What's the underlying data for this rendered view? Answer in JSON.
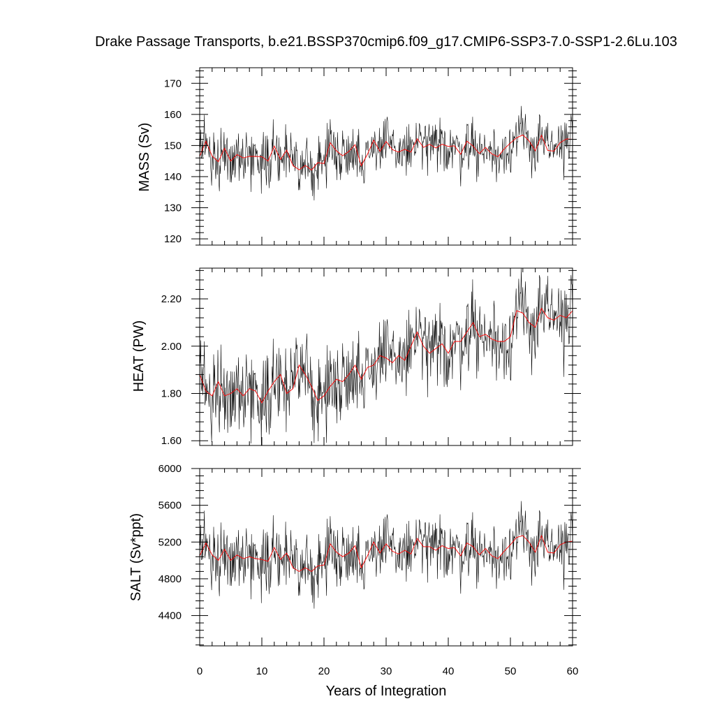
{
  "chart_data": {
    "type": "line",
    "title": "Drake Passage Transports, b.e21.BSSP370cmip6.f09_g17.CMIP6-SSP3-7.0-SSP1-2.6Lu.103",
    "xlabel": "Years of Integration",
    "xlim": [
      0,
      60
    ],
    "xticks": [
      "0",
      "10",
      "20",
      "30",
      "40",
      "50",
      "60"
    ],
    "line_colors": {
      "monthly": "#000000",
      "annual": "#ff0000"
    },
    "panels": [
      {
        "ylabel": "MASS (Sv)",
        "ylim": [
          118,
          175
        ],
        "yticks": [
          "120",
          "130",
          "140",
          "150",
          "160",
          "170"
        ],
        "series": [
          {
            "name": "",
            "values": [
              146.5,
              151.4,
              146.6,
              144.8,
              149.1,
              145.0,
              147.1,
              146.0,
              146.5,
              146.5,
              146.4,
              145.0,
              149.8,
              145.5,
              148.5,
              143.6,
              142.2,
              143.6,
              142.1,
              144.5,
              144.2,
              150.9,
              148.3,
              146.7,
              148.1,
              150.3,
              143.5,
              147.2,
              151.7,
              148.1,
              151.3,
              148.7,
              147.9,
              148.8,
              147.9,
              152.2,
              149.4,
              150.4,
              149.2,
              150.4,
              149.7,
              149.9,
              147.2,
              151.4,
              149.8,
              147.4,
              149.4,
              147.3,
              146.4,
              148.9,
              150.8,
              152.5,
              153.4,
              151.5,
              148.3,
              153.3,
              148.4,
              148.2,
              150.9,
              152.1,
              152.0
            ]
          }
        ]
      },
      {
        "ylabel": "HEAT (PW)",
        "ylim": [
          1.58,
          2.33
        ],
        "yticks": [
          "1.60",
          "1.80",
          "2.00",
          "2.20"
        ],
        "series": [
          {
            "name": "",
            "values": [
              1.88,
              1.81,
              1.79,
              1.85,
              1.79,
              1.8,
              1.82,
              1.79,
              1.82,
              1.81,
              1.76,
              1.81,
              1.85,
              1.88,
              1.8,
              1.82,
              1.92,
              1.88,
              1.83,
              1.77,
              1.79,
              1.83,
              1.86,
              1.85,
              1.88,
              1.92,
              1.86,
              1.91,
              1.92,
              1.96,
              1.95,
              1.93,
              1.96,
              1.94,
              2.0,
              2.06,
              2.0,
              1.97,
              1.99,
              2.01,
              1.97,
              2.02,
              2.02,
              2.06,
              2.1,
              2.04,
              2.05,
              2.03,
              2.02,
              2.02,
              2.04,
              2.15,
              2.14,
              2.1,
              2.08,
              2.16,
              2.12,
              2.11,
              2.13,
              2.12,
              2.15
            ]
          }
        ]
      },
      {
        "ylabel": "SALT (Sv*ppt)",
        "ylim": [
          4070,
          6000
        ],
        "yticks": [
          "4400",
          "4800",
          "5200",
          "5600",
          "6000"
        ],
        "series": [
          {
            "name": "",
            "values": [
              5050,
              5190,
              5060,
              5000,
              5120,
              5000,
              5060,
              5020,
              5040,
              5020,
              5010,
              4990,
              5140,
              5010,
              5080,
              4920,
              4880,
              4920,
              4880,
              4940,
              4950,
              5180,
              5090,
              5040,
              5080,
              5160,
              4920,
              5050,
              5200,
              5080,
              5180,
              5100,
              5070,
              5110,
              5070,
              5240,
              5150,
              5150,
              5110,
              5160,
              5130,
              5140,
              5050,
              5190,
              5150,
              5060,
              5130,
              5050,
              5020,
              5100,
              5170,
              5250,
              5270,
              5200,
              5090,
              5270,
              5090,
              5080,
              5170,
              5200,
              5210
            ]
          }
        ]
      }
    ]
  }
}
